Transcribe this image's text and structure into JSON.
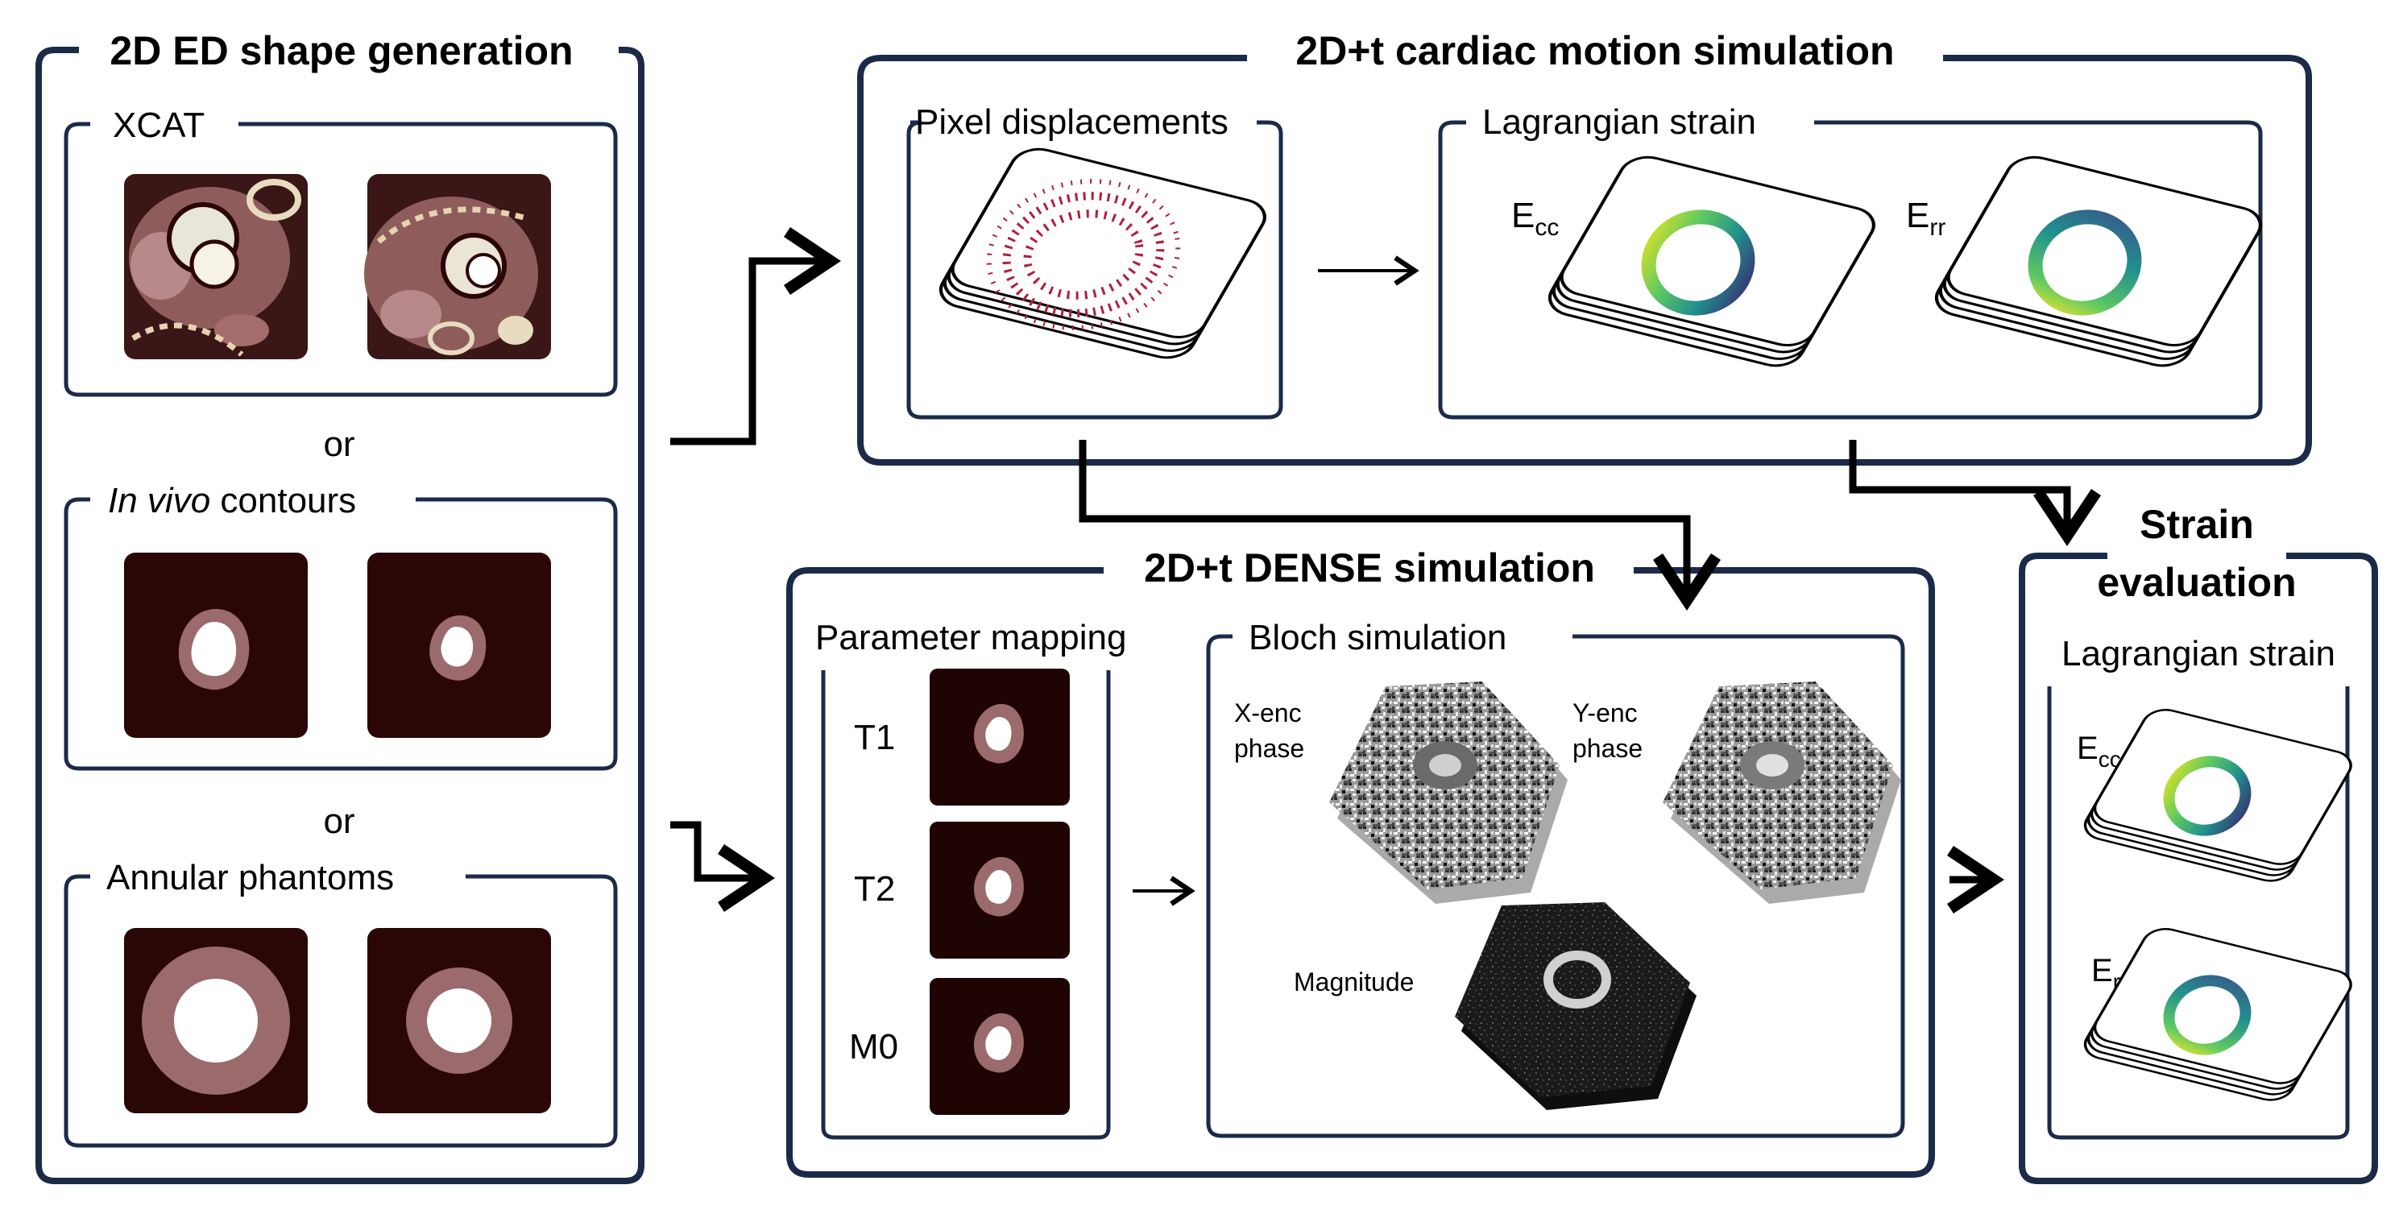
{
  "colors": {
    "frame": "#1b2a49",
    "tissue_dark": "#2b0606",
    "myocardium": "#9a6a6c",
    "cavity": "#ffffff",
    "xcat_bg": "#5a3232",
    "strain_low": "#3b1f6e",
    "strain_mid": "#21908d",
    "strain_high": "#f1e51d",
    "arrow_vector": "#b0203a"
  },
  "shape_panel": {
    "title": "2D ED shape generation",
    "xcat": {
      "label": "XCAT"
    },
    "or1": "or",
    "invivo": {
      "label_italic": "In vivo",
      "label_rest": " contours"
    },
    "or2": "or",
    "annular": {
      "label": "Annular phantoms"
    }
  },
  "motion_panel": {
    "title": "2D+t cardiac motion simulation",
    "pixel": {
      "label": "Pixel displacements"
    },
    "strain": {
      "label": "Lagrangian strain",
      "ecc_main": "E",
      "ecc_sub": "cc",
      "err_main": "E",
      "err_sub": "rr"
    }
  },
  "dense_panel": {
    "title": "2D+t DENSE simulation",
    "param": {
      "label": "Parameter mapping",
      "maps": [
        "T1",
        "T2",
        "M0"
      ]
    },
    "bloch": {
      "label": "Bloch simulation",
      "xenc": [
        "X-enc",
        "phase"
      ],
      "yenc": [
        "Y-enc",
        "phase"
      ],
      "magnitude": "Magnitude"
    }
  },
  "eval_panel": {
    "title_lines": [
      "Strain",
      "evaluation"
    ],
    "strain": {
      "label": "Lagrangian strain",
      "ecc_main": "E",
      "ecc_sub": "cc",
      "err_main": "E",
      "err_sub": "rr"
    }
  }
}
